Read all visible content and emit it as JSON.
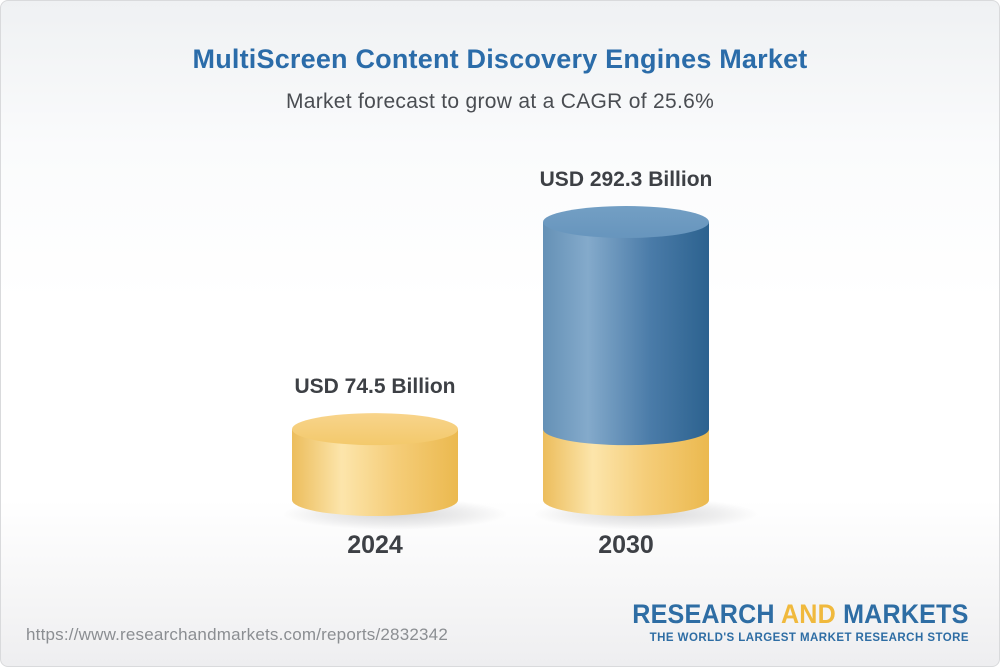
{
  "header": {
    "title": "MultiScreen Content Discovery Engines Market",
    "subtitle": "Market forecast to grow at a CAGR of 25.6%"
  },
  "chart_data": {
    "type": "bar",
    "title": "MultiScreen Content Discovery Engines Market",
    "subtitle": "Market forecast to grow at a CAGR of 25.6%",
    "cagr_percent": 25.6,
    "unit": "USD Billion",
    "categories": [
      "2024",
      "2030"
    ],
    "values": [
      74.5,
      292.3
    ],
    "value_labels": [
      "USD 74.5 Billion",
      "USD 292.3 Billion"
    ],
    "series_note": "2030 bar shows 2024 base (gold) stacked under forecast growth (blue)",
    "bar_style": "3d-cylinder",
    "colors": {
      "base_gold": "#f2c465",
      "growth_blue": "#34699a",
      "label_text": "#3d4045",
      "title_blue": "#2b6ca9",
      "subtitle_gray": "#4a4d52"
    }
  },
  "footer": {
    "url": "https://www.researchandmarkets.com/reports/2832342",
    "logo": {
      "word_research": "RESEARCH",
      "word_and": "AND",
      "word_markets": "MARKETS",
      "tagline": "THE WORLD'S LARGEST MARKET RESEARCH STORE"
    }
  }
}
